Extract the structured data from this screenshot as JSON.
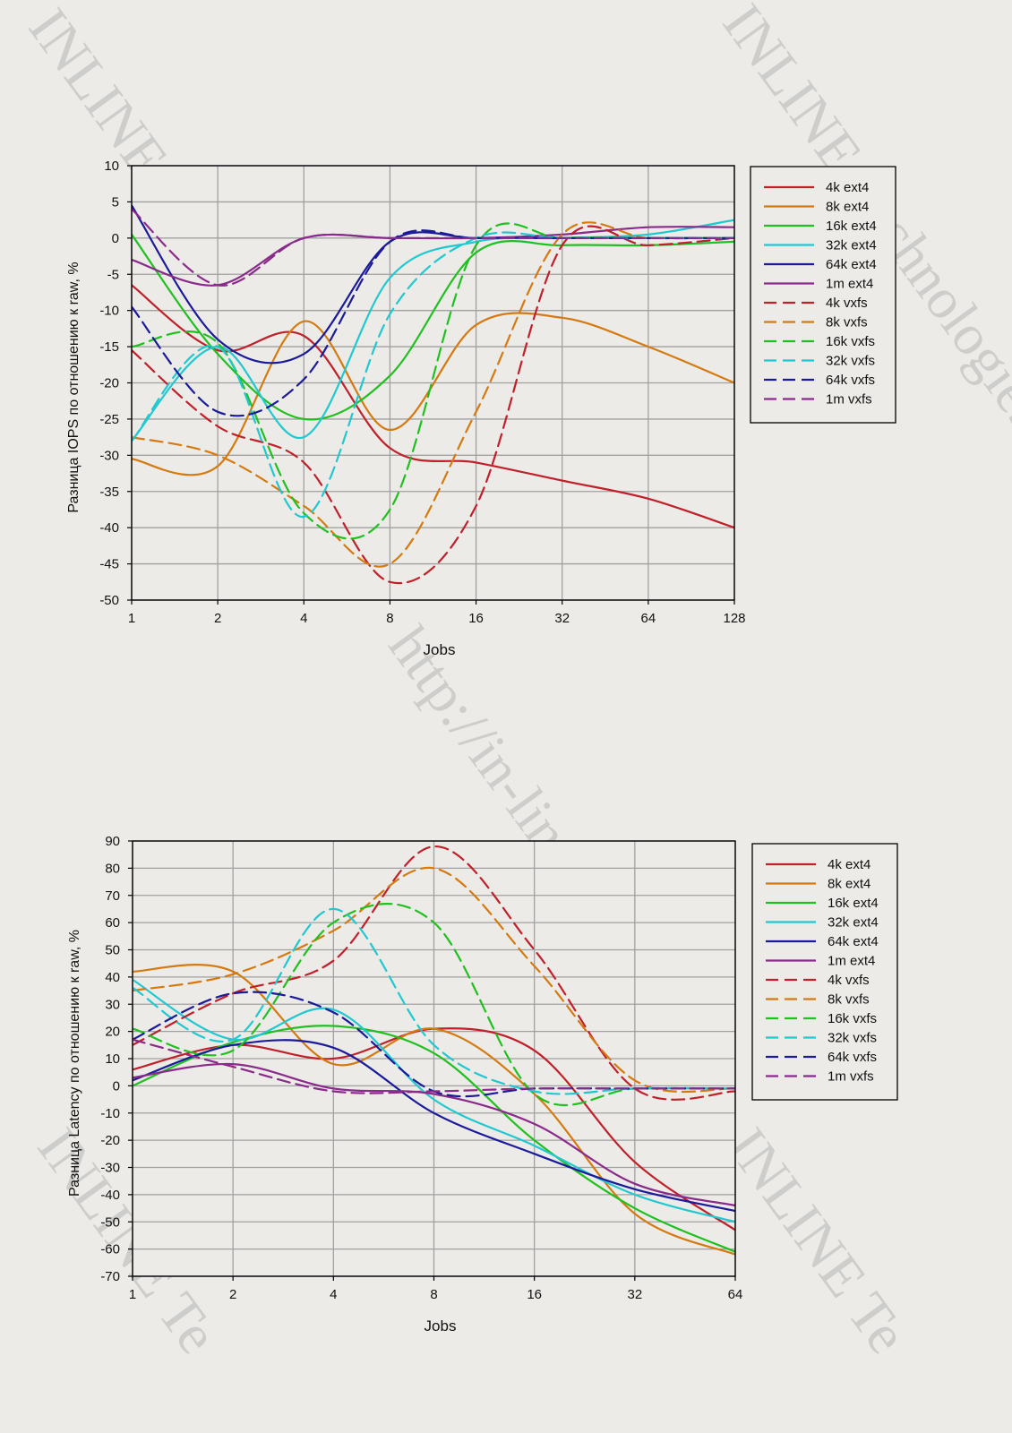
{
  "colors": {
    "background": "#ecebe8",
    "plot_background": "#ecebe8",
    "grid": "#a0a0a0",
    "axis": "#000000"
  },
  "watermarks": {
    "top_left": "INLINE Technologies",
    "top_right": "INLINE Technologies",
    "center": "http://in-line.ru/",
    "bottom_left": "INLINE Te",
    "bottom_right": "INLINE Te"
  },
  "chart_data": [
    {
      "type": "line",
      "title": "",
      "xlabel": "Jobs",
      "ylabel": "Разница IOPS по отношению к raw, %",
      "x_scale": "log2",
      "x": [
        1,
        2,
        4,
        8,
        16,
        32,
        64,
        128
      ],
      "xticks": [
        "1",
        "2",
        "4",
        "8",
        "16",
        "32",
        "64",
        "128"
      ],
      "ylim": [
        -50,
        10
      ],
      "yticks": [
        "10",
        "5",
        "0",
        "-5",
        "-10",
        "-15",
        "-20",
        "-25",
        "-30",
        "-35",
        "-40",
        "-45",
        "-50"
      ],
      "grid": true,
      "legend": "right",
      "series": [
        {
          "name": "4k ext4",
          "color": "#c0202a",
          "dash": false,
          "values": [
            -6.5,
            -15.5,
            -13.5,
            -29,
            -31,
            -33.5,
            -36,
            -40
          ]
        },
        {
          "name": "8k ext4",
          "color": "#d47a10",
          "dash": false,
          "values": [
            -30.5,
            -31.5,
            -11.5,
            -26.5,
            -12,
            -11,
            -15,
            -20
          ]
        },
        {
          "name": "16k ext4",
          "color": "#20c020",
          "dash": false,
          "values": [
            0.5,
            -16,
            -25,
            -19,
            -2,
            -1,
            -1,
            -0.5
          ]
        },
        {
          "name": "32k ext4",
          "color": "#20c8d0",
          "dash": false,
          "values": [
            -28,
            -15,
            -27.5,
            -5.5,
            -0.5,
            0,
            0.5,
            2.5
          ]
        },
        {
          "name": "64k ext4",
          "color": "#1a1a9a",
          "dash": false,
          "values": [
            4.5,
            -14,
            -16,
            -0.5,
            0,
            0,
            0,
            0
          ]
        },
        {
          "name": "1m ext4",
          "color": "#8a2a8a",
          "dash": false,
          "values": [
            -3,
            -6.5,
            0,
            0,
            0,
            0.5,
            1.5,
            1.5
          ]
        },
        {
          "name": "4k vxfs",
          "color": "#c0202a",
          "dash": true,
          "values": [
            -15.5,
            -26,
            -31,
            -47.5,
            -37,
            -1,
            -1,
            0
          ]
        },
        {
          "name": "8k vxfs",
          "color": "#d47a10",
          "dash": true,
          "values": [
            -27.5,
            -30,
            -37,
            -45,
            -24,
            0.5,
            0,
            0
          ]
        },
        {
          "name": "16k vxfs",
          "color": "#20c020",
          "dash": true,
          "values": [
            -15,
            -14.5,
            -38,
            -37.5,
            -1,
            0,
            0,
            0
          ]
        },
        {
          "name": "32k vxfs",
          "color": "#20c8d0",
          "dash": true,
          "values": [
            -28,
            -15,
            -38.5,
            -10.5,
            0,
            0,
            0,
            0
          ]
        },
        {
          "name": "64k vxfs",
          "color": "#1a1a9a",
          "dash": true,
          "values": [
            -9.5,
            -24,
            -19.5,
            -0.5,
            0,
            0,
            0,
            0
          ]
        },
        {
          "name": "1m vxfs",
          "color": "#8a2a8a",
          "dash": true,
          "values": [
            4,
            -6.5,
            0,
            0,
            0,
            0,
            0,
            0
          ]
        }
      ]
    },
    {
      "type": "line",
      "title": "",
      "xlabel": "Jobs",
      "ylabel": "Разница Latency по отношению к raw, %",
      "x_scale": "log2",
      "x": [
        1,
        2,
        4,
        8,
        16,
        32,
        64
      ],
      "xticks": [
        "1",
        "2",
        "4",
        "8",
        "16",
        "32",
        "64"
      ],
      "ylim": [
        -70,
        90
      ],
      "yticks": [
        "90",
        "80",
        "70",
        "60",
        "50",
        "40",
        "30",
        "20",
        "10",
        "0",
        "-10",
        "-20",
        "-30",
        "-40",
        "-50",
        "-60",
        "-70"
      ],
      "grid": true,
      "legend": "right",
      "series": [
        {
          "name": "4k ext4",
          "color": "#c0202a",
          "dash": false,
          "values": [
            6,
            15,
            10,
            21,
            13,
            -28,
            -53
          ]
        },
        {
          "name": "8k ext4",
          "color": "#d47a10",
          "dash": false,
          "values": [
            42,
            42,
            8,
            21,
            -3,
            -47,
            -62
          ]
        },
        {
          "name": "16k ext4",
          "color": "#20c020",
          "dash": false,
          "values": [
            0,
            16,
            22,
            12,
            -20,
            -45,
            -61
          ]
        },
        {
          "name": "32k ext4",
          "color": "#20c8d0",
          "dash": false,
          "values": [
            39,
            17,
            28,
            -5,
            -22,
            -40,
            -50
          ]
        },
        {
          "name": "64k ext4",
          "color": "#1a1a9a",
          "dash": false,
          "values": [
            2,
            15,
            14,
            -10,
            -25,
            -38,
            -46
          ]
        },
        {
          "name": "1m ext4",
          "color": "#8a2a8a",
          "dash": false,
          "values": [
            3,
            8,
            -1,
            -3,
            -14,
            -36,
            -44
          ]
        },
        {
          "name": "4k vxfs",
          "color": "#c0202a",
          "dash": true,
          "values": [
            15,
            34,
            46,
            88,
            50,
            -1,
            -2
          ]
        },
        {
          "name": "8k vxfs",
          "color": "#d47a10",
          "dash": true,
          "values": [
            35,
            41,
            57,
            80,
            44,
            2,
            -1
          ]
        },
        {
          "name": "16k vxfs",
          "color": "#20c020",
          "dash": true,
          "values": [
            21,
            13,
            60,
            60,
            -3,
            -1,
            -1
          ]
        },
        {
          "name": "32k vxfs",
          "color": "#20c8d0",
          "dash": true,
          "values": [
            36,
            17,
            65,
            15,
            -2,
            -1,
            -1
          ]
        },
        {
          "name": "64k vxfs",
          "color": "#1a1a9a",
          "dash": true,
          "values": [
            17,
            34,
            27,
            -2,
            -1,
            -1,
            -1
          ]
        },
        {
          "name": "1m vxfs",
          "color": "#8a2a8a",
          "dash": true,
          "values": [
            17,
            7,
            -2,
            -2,
            -1,
            -1,
            -1
          ]
        }
      ]
    }
  ]
}
